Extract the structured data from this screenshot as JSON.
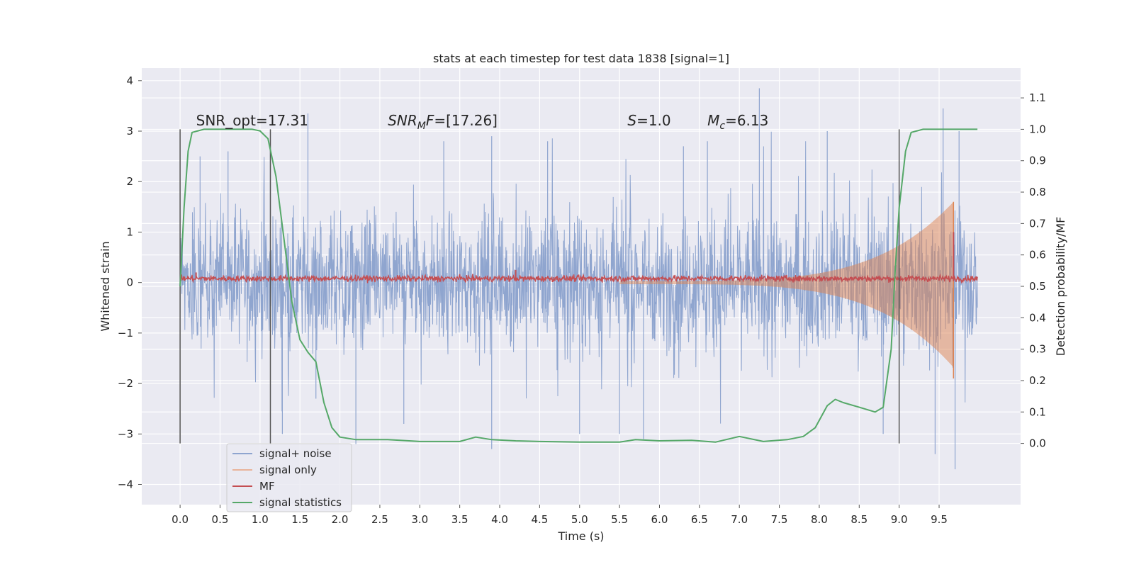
{
  "chart_data": {
    "type": "line",
    "title": "stats at each timestep for test data 1838 [signal=1]",
    "xlabel": "Time (s)",
    "ylabel_left": "Whitened strain",
    "ylabel_right": "Detection probability/MF",
    "xlim": [
      -0.48,
      10.52
    ],
    "ylim_left": [
      -4.4,
      4.25
    ],
    "ylim_right": [
      -0.195,
      1.195
    ],
    "x_ticks": [
      "0.0",
      "0.5",
      "1.0",
      "1.5",
      "2.0",
      "2.5",
      "3.0",
      "3.5",
      "4.0",
      "4.5",
      "5.0",
      "5.5",
      "6.0",
      "6.5",
      "7.0",
      "7.5",
      "8.0",
      "8.5",
      "9.0",
      "9.5"
    ],
    "y_left_ticks": [
      "−4",
      "−3",
      "−2",
      "−1",
      "0",
      "1",
      "2",
      "3",
      "4"
    ],
    "y_right_ticks": [
      "0.0",
      "0.1",
      "0.2",
      "0.3",
      "0.4",
      "0.5",
      "0.6",
      "0.7",
      "0.8",
      "0.9",
      "1.0",
      "1.1"
    ],
    "grid": true,
    "legend_position": "lower-left",
    "annotations": [
      {
        "text": "SNR_opt=17.31",
        "x": 0.2,
        "y": 3.1
      },
      {
        "text": "SNR_MF=[17.26]",
        "x": 2.6,
        "y": 3.1
      },
      {
        "text": "S=1.0",
        "x": 5.6,
        "y": 3.1
      },
      {
        "text": "M_c=6.13",
        "x": 6.6,
        "y": 3.1
      }
    ],
    "vertical_lines": [
      0.0,
      1.13,
      9.0
    ],
    "series": [
      {
        "name": "signal+ noise",
        "color": "#4c72b0",
        "axis": "left",
        "x_range": [
          0.0,
          9.98
        ],
        "envelope_typical": 1.5,
        "peaks": [
          [
            0.25,
            2.5
          ],
          [
            0.6,
            2.6
          ],
          [
            1.13,
            2.65
          ],
          [
            1.28,
            -3.0
          ],
          [
            1.6,
            3.35
          ],
          [
            1.7,
            -2.3
          ],
          [
            2.2,
            -3.2
          ],
          [
            2.8,
            -2.8
          ],
          [
            3.3,
            2.8
          ],
          [
            3.9,
            -3.3
          ],
          [
            3.9,
            2.9
          ],
          [
            4.6,
            2.8
          ],
          [
            5.0,
            -3.0
          ],
          [
            5.5,
            -3.0
          ],
          [
            5.8,
            -3.1
          ],
          [
            6.3,
            2.7
          ],
          [
            6.6,
            2.8
          ],
          [
            7.25,
            3.85
          ],
          [
            8.1,
            3.0
          ],
          [
            8.8,
            -3.0
          ],
          [
            9.45,
            -3.4
          ],
          [
            9.55,
            3.45
          ],
          [
            9.7,
            -3.7
          ],
          [
            9.75,
            3.0
          ]
        ]
      },
      {
        "name": "signal only",
        "color": "#dd8452",
        "axis": "left",
        "chirp": {
          "start": 5.5,
          "end": 9.68,
          "amp_end": 1.6,
          "peak": [
            9.68,
            1.6
          ],
          "trough": [
            9.68,
            -1.9
          ]
        }
      },
      {
        "name": "MF",
        "color": "#c44e52",
        "axis": "left",
        "baseline": 0.08,
        "noise": 0.05,
        "x_range": [
          0.0,
          9.98
        ],
        "spikes": [
          [
            9.68,
            1.0
          ],
          [
            4.2,
            0.25
          ],
          [
            0.2,
            0.2
          ]
        ]
      },
      {
        "name": "signal statistics",
        "color": "#55a868",
        "axis": "right",
        "points": [
          [
            0.0,
            0.5
          ],
          [
            0.05,
            0.75
          ],
          [
            0.1,
            0.93
          ],
          [
            0.15,
            0.99
          ],
          [
            0.3,
            1.0
          ],
          [
            0.9,
            1.0
          ],
          [
            1.0,
            0.995
          ],
          [
            1.1,
            0.97
          ],
          [
            1.2,
            0.85
          ],
          [
            1.3,
            0.65
          ],
          [
            1.4,
            0.45
          ],
          [
            1.5,
            0.33
          ],
          [
            1.6,
            0.29
          ],
          [
            1.7,
            0.26
          ],
          [
            1.8,
            0.13
          ],
          [
            1.9,
            0.05
          ],
          [
            2.0,
            0.02
          ],
          [
            2.2,
            0.012
          ],
          [
            2.6,
            0.012
          ],
          [
            3.0,
            0.006
          ],
          [
            3.5,
            0.006
          ],
          [
            3.7,
            0.02
          ],
          [
            3.9,
            0.012
          ],
          [
            4.2,
            0.008
          ],
          [
            4.5,
            0.006
          ],
          [
            5.0,
            0.004
          ],
          [
            5.5,
            0.004
          ],
          [
            5.7,
            0.012
          ],
          [
            6.0,
            0.008
          ],
          [
            6.4,
            0.01
          ],
          [
            6.7,
            0.004
          ],
          [
            7.0,
            0.022
          ],
          [
            7.3,
            0.006
          ],
          [
            7.6,
            0.012
          ],
          [
            7.8,
            0.022
          ],
          [
            7.95,
            0.05
          ],
          [
            8.1,
            0.12
          ],
          [
            8.2,
            0.14
          ],
          [
            8.3,
            0.13
          ],
          [
            8.5,
            0.115
          ],
          [
            8.7,
            0.1
          ],
          [
            8.8,
            0.115
          ],
          [
            8.9,
            0.3
          ],
          [
            8.95,
            0.55
          ],
          [
            9.0,
            0.75
          ],
          [
            9.08,
            0.93
          ],
          [
            9.15,
            0.99
          ],
          [
            9.3,
            1.0
          ],
          [
            9.98,
            1.0
          ]
        ]
      }
    ]
  }
}
